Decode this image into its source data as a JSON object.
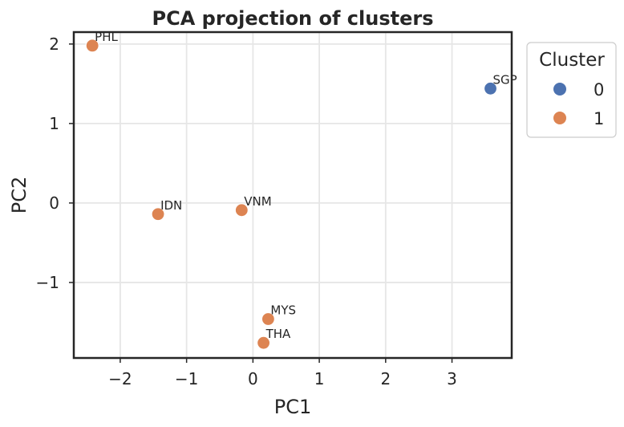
{
  "chart_data": {
    "type": "scatter",
    "title": "PCA projection of clusters",
    "xlabel": "PC1",
    "ylabel": "PC2",
    "xlim": [
      -2.7,
      3.9
    ],
    "ylim": [
      -1.95,
      2.15
    ],
    "xticks": [
      -2,
      -1,
      0,
      1,
      2,
      3
    ],
    "yticks": [
      -1,
      0,
      1,
      2
    ],
    "xtick_labels": [
      "−2",
      "−1",
      "0",
      "1",
      "2",
      "3"
    ],
    "ytick_labels": [
      "−1",
      "0",
      "1",
      "2"
    ],
    "grid": true,
    "legend": {
      "title": "Cluster",
      "placement": "outside-top-right",
      "entries": [
        {
          "label": "0",
          "color": "#4c72b0"
        },
        {
          "label": "1",
          "color": "#dd8452"
        }
      ]
    },
    "points": [
      {
        "label": "PHL",
        "x": -2.42,
        "y": 1.98,
        "cluster": 1
      },
      {
        "label": "IDN",
        "x": -1.43,
        "y": -0.14,
        "cluster": 1
      },
      {
        "label": "VNM",
        "x": -0.17,
        "y": -0.09,
        "cluster": 1
      },
      {
        "label": "MYS",
        "x": 0.23,
        "y": -1.46,
        "cluster": 1
      },
      {
        "label": "THA",
        "x": 0.16,
        "y": -1.76,
        "cluster": 1
      },
      {
        "label": "SGP",
        "x": 3.58,
        "y": 1.44,
        "cluster": 0
      }
    ]
  }
}
